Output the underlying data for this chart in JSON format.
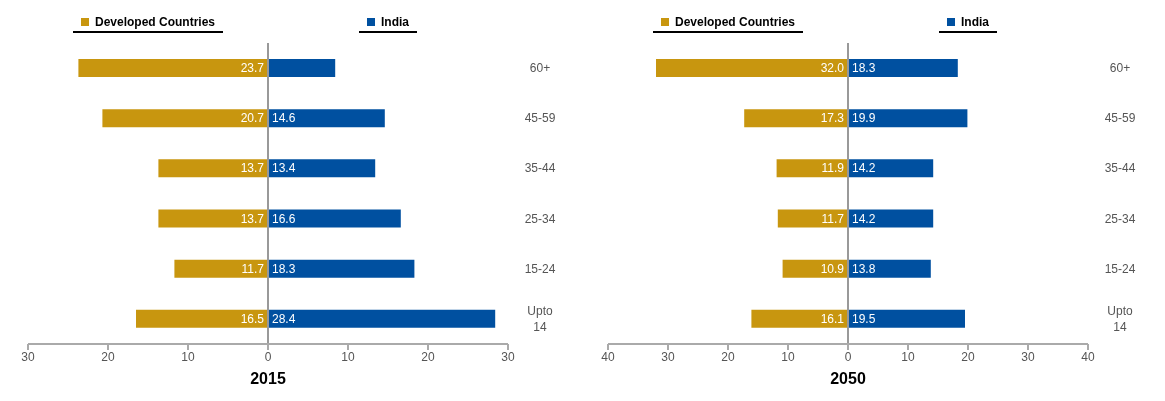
{
  "chart_data": [
    {
      "type": "bar",
      "orientation": "horizontal",
      "xlabel": "2015",
      "categories": [
        "60+",
        "45-59",
        "35-44",
        "25-34",
        "15-24",
        "Upto 14"
      ],
      "series": [
        {
          "name": "Developed Countries",
          "color": "#c8960f",
          "base": [
            -23.7,
            -20.7,
            -13.7,
            -13.7,
            -11.7,
            -16.5
          ],
          "values": [
            23.7,
            20.7,
            13.7,
            13.7,
            11.7,
            16.5
          ],
          "value_labels": [
            "23.7",
            "20.7",
            "13.7",
            "13.7",
            "11.7",
            "16.5"
          ]
        },
        {
          "name": "India",
          "color": "#0050a0",
          "values": [
            8.4,
            14.6,
            13.4,
            16.6,
            18.3,
            28.4
          ],
          "value_labels": [
            null,
            "14.6",
            "13.4",
            "16.6",
            "18.3",
            "28.4"
          ]
        }
      ],
      "xlim": [
        -30,
        30
      ],
      "xticks": [
        {
          "value": -30,
          "label": "30"
        },
        {
          "value": -20,
          "label": "20"
        },
        {
          "value": -10,
          "label": "10"
        },
        0,
        10,
        20,
        30
      ],
      "ref_lines": [
        {
          "axis": "x",
          "value": 0,
          "color": "#999999"
        }
      ],
      "legend": "top",
      "grid": false
    },
    {
      "type": "bar",
      "orientation": "horizontal",
      "xlabel": "2050",
      "categories": [
        "60+",
        "45-59",
        "35-44",
        "25-34",
        "15-24",
        "Upto 14"
      ],
      "series": [
        {
          "name": "Developed Countries",
          "color": "#c8960f",
          "base": [
            -32.0,
            -17.3,
            -11.9,
            -11.7,
            -10.9,
            -16.1
          ],
          "values": [
            32.0,
            17.3,
            11.9,
            11.7,
            10.9,
            16.1
          ],
          "value_labels": [
            "32.0",
            "17.3",
            "11.9",
            "11.7",
            "10.9",
            "16.1"
          ]
        },
        {
          "name": "India",
          "color": "#0050a0",
          "values": [
            18.3,
            19.9,
            14.2,
            14.2,
            13.8,
            19.5
          ],
          "value_labels": [
            "18.3",
            "19.9",
            "14.2",
            "14.2",
            "13.8",
            "19.5"
          ]
        }
      ],
      "xlim": [
        -40,
        40
      ],
      "xticks": [
        {
          "value": -40,
          "label": "40"
        },
        {
          "value": -30,
          "label": "30"
        },
        {
          "value": -20,
          "label": "20"
        },
        {
          "value": -10,
          "label": "10"
        },
        0,
        10,
        20,
        30,
        40
      ],
      "ref_lines": [
        {
          "axis": "x",
          "value": 0,
          "color": "#999999"
        }
      ],
      "legend": "top",
      "grid": false
    }
  ]
}
